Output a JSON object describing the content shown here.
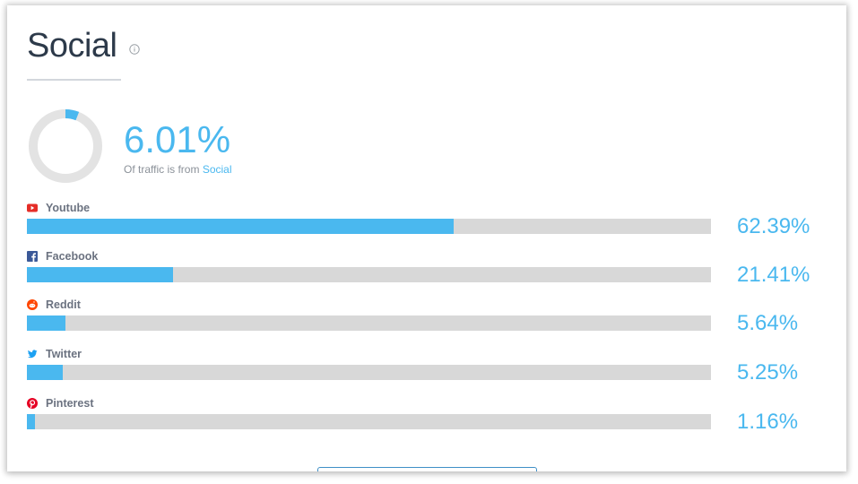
{
  "card": {
    "title": "Social",
    "summary": {
      "percentage": "6.01%",
      "fraction": 0.0601,
      "caption_prefix": "Of traffic is from",
      "caption_link": "Social"
    }
  },
  "sources": [
    {
      "name": "Youtube",
      "value": "62.39%",
      "fraction": 0.6239,
      "icon": "youtube-icon",
      "icon_color": "#e52d27"
    },
    {
      "name": "Facebook",
      "value": "21.41%",
      "fraction": 0.2141,
      "icon": "facebook-icon",
      "icon_color": "#3b5998"
    },
    {
      "name": "Reddit",
      "value": "5.64%",
      "fraction": 0.0564,
      "icon": "reddit-icon",
      "icon_color": "#ff4500"
    },
    {
      "name": "Twitter",
      "value": "5.25%",
      "fraction": 0.0525,
      "icon": "twitter-icon",
      "icon_color": "#1da1f2"
    },
    {
      "name": "Pinterest",
      "value": "1.16%",
      "fraction": 0.0116,
      "icon": "pinterest-icon",
      "icon_color": "#e60023"
    }
  ],
  "colors": {
    "accent": "#4ab8ef",
    "track": "#d8d8d8",
    "title": "#2d3a4a"
  }
}
